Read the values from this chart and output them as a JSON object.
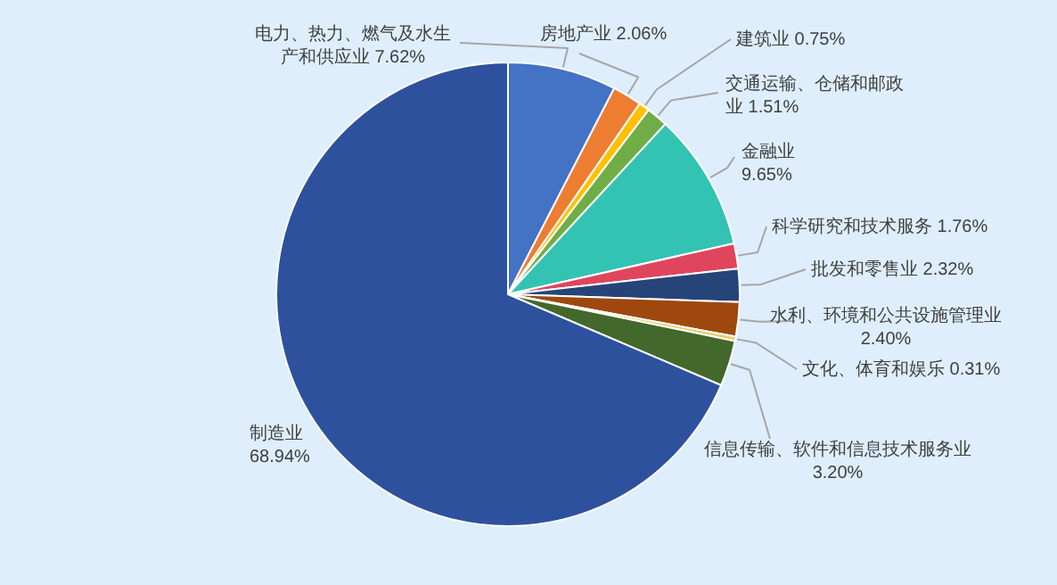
{
  "chart_data": {
    "type": "pie",
    "value_labels": [
      "7.62%",
      "2.06%",
      "0.75%",
      "1.51%",
      "9.65%",
      "1.76%",
      "2.32%",
      "2.40%",
      "0.31%",
      "3.20%",
      "68.94%"
    ],
    "categories": [
      "电力、热力、燃气及水生产和供应业",
      "房地产业",
      "建筑业",
      "交通运输、仓储和邮政业",
      "金融业",
      "科学研究和技术服务",
      "批发和零售业",
      "水利、环境和公共设施管理业",
      "文化、体育和娱乐",
      "信息传输、软件和信息技术服务业",
      "制造业"
    ],
    "values": [
      7.62,
      2.06,
      0.75,
      1.51,
      9.65,
      1.76,
      2.32,
      2.4,
      0.31,
      3.2,
      68.94
    ],
    "colors": [
      "#4472c4",
      "#ed7d31",
      "#ffc000",
      "#70ad47",
      "#33c3b3",
      "#e0455e",
      "#264478",
      "#9e480e",
      "#e8cf6a",
      "#43682b",
      "#2e519e"
    ]
  }
}
